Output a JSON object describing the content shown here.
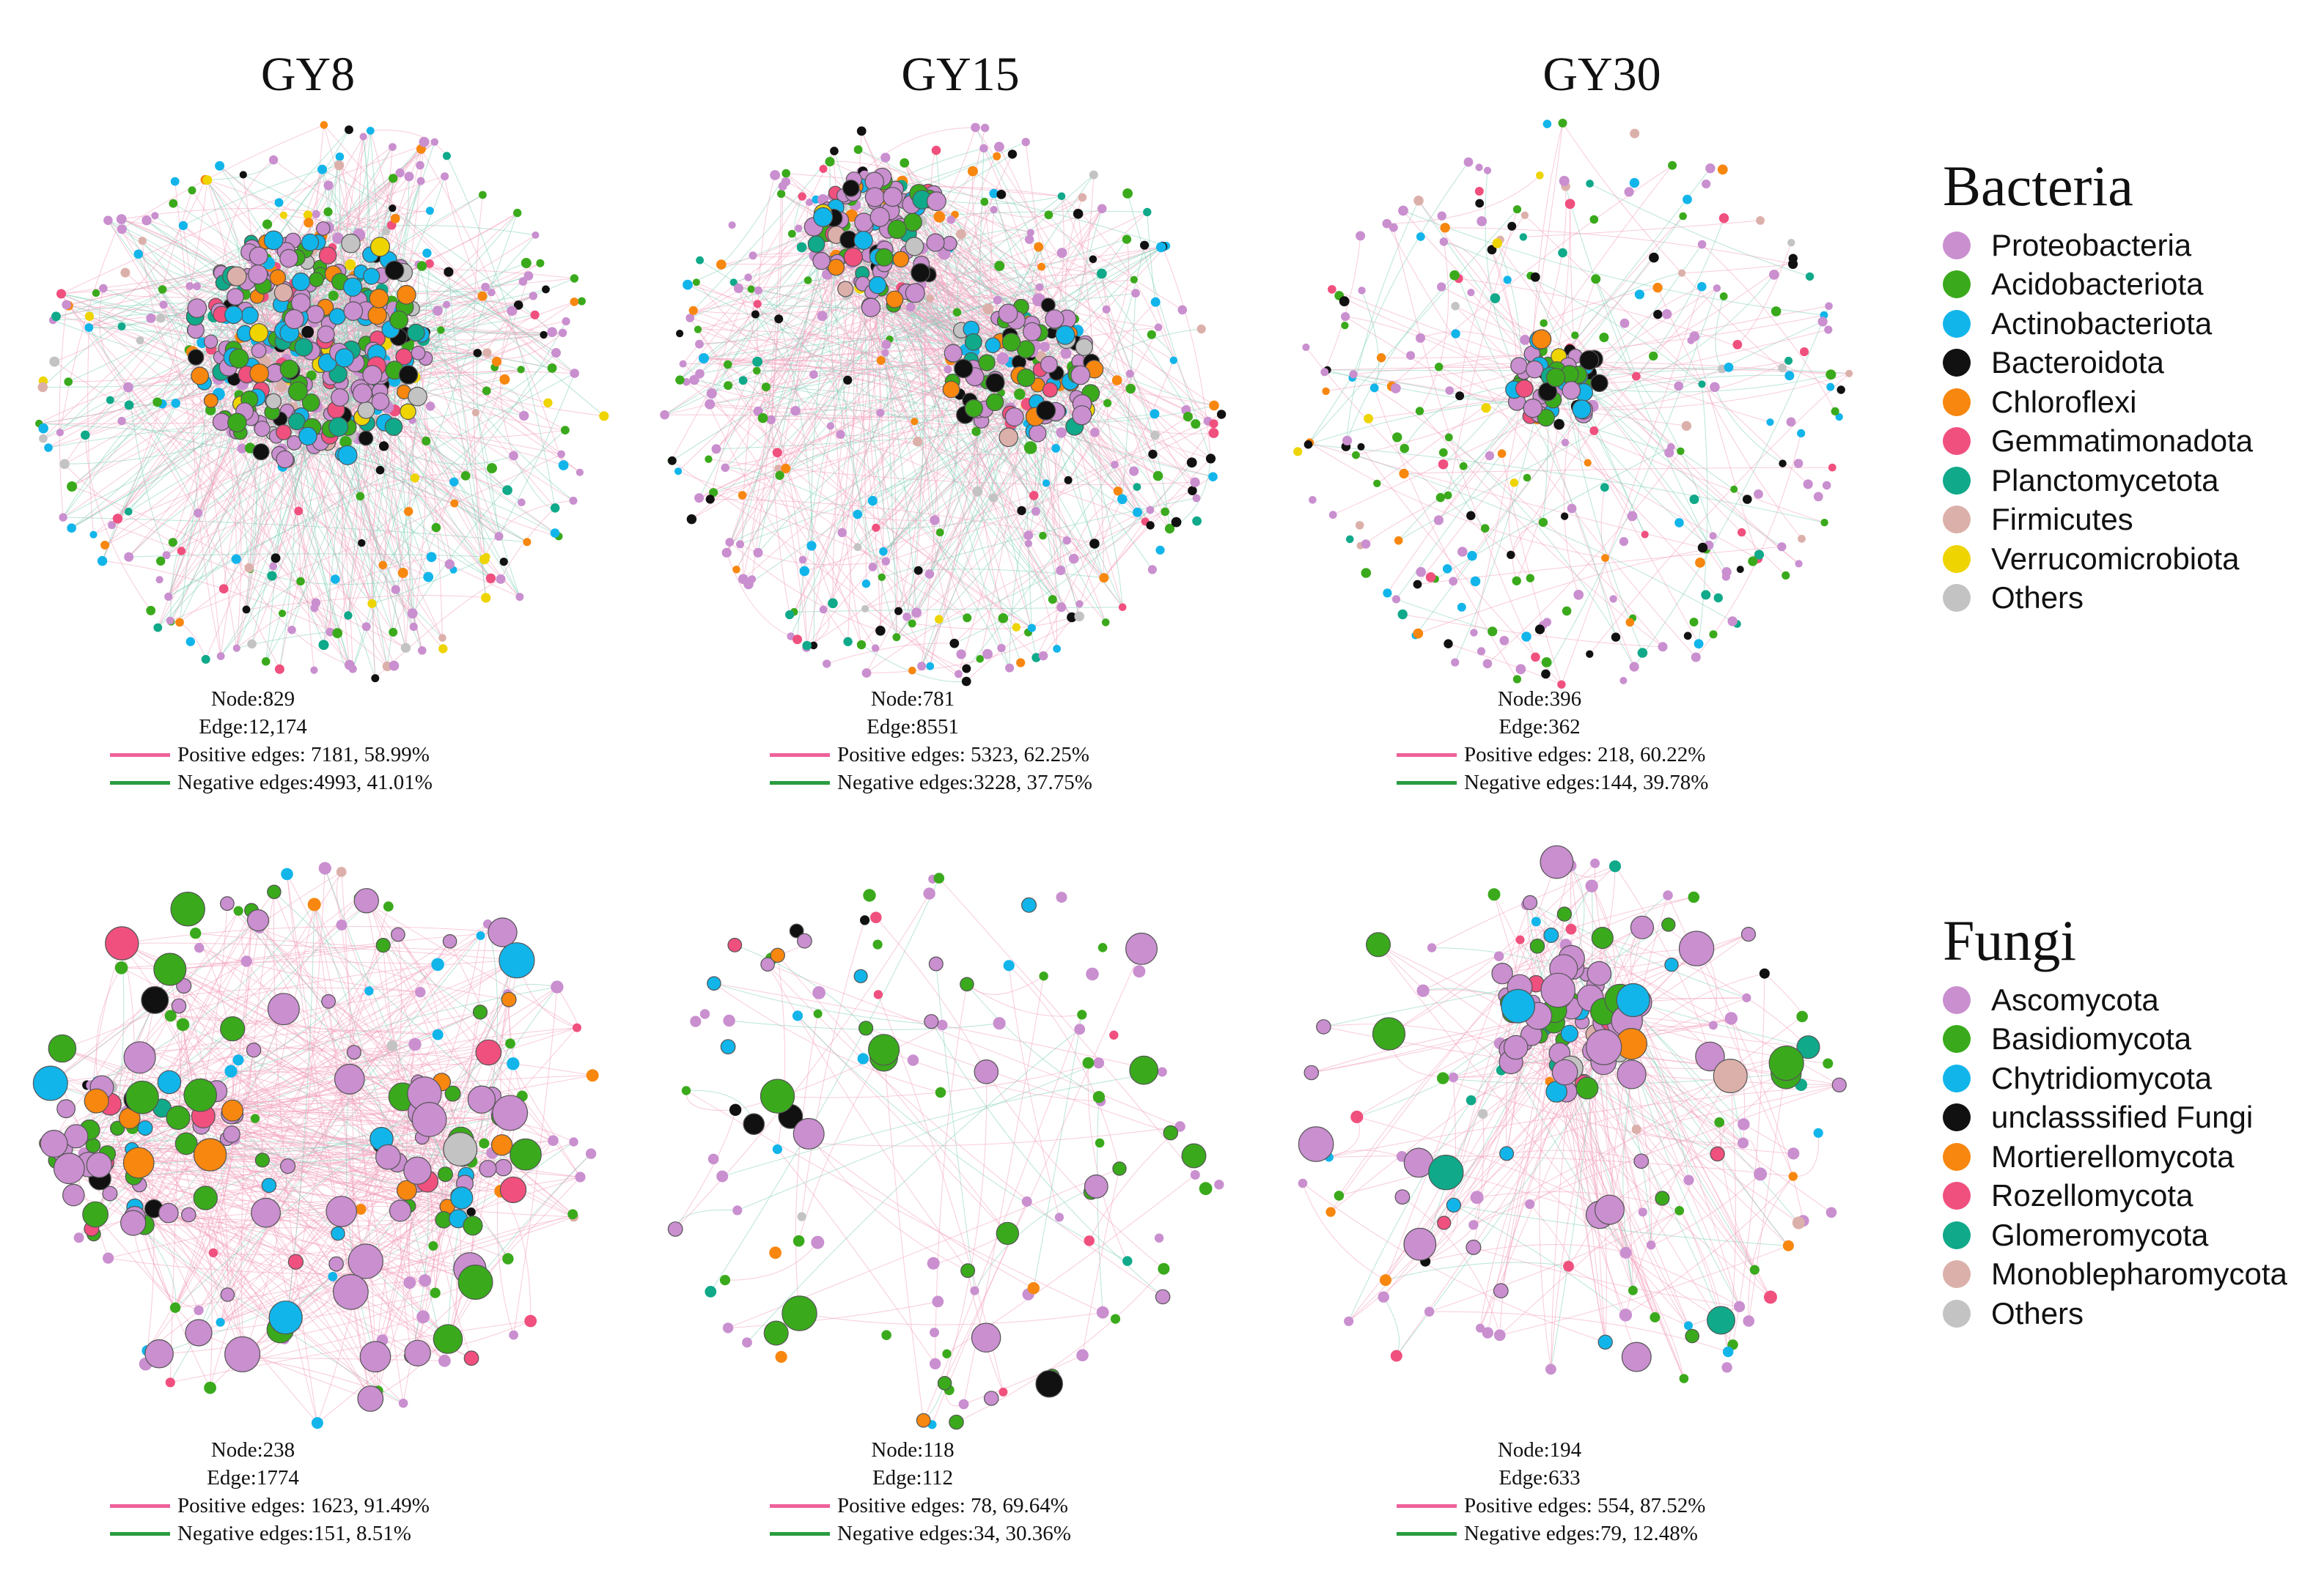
{
  "columns": [
    "GY8",
    "GY15",
    "GY30"
  ],
  "edge_colors": {
    "positive": "#f0609a",
    "negative": "#2a9d3f"
  },
  "bacteria": {
    "title": "Bacteria",
    "legend": [
      {
        "label": "Proteobacteria",
        "color": "#c98fcf"
      },
      {
        "label": "Acidobacteriota",
        "color": "#3aaa1c"
      },
      {
        "label": "Actinobacteriota",
        "color": "#12b5ea"
      },
      {
        "label": "Bacteroidota",
        "color": "#111111"
      },
      {
        "label": "Chloroflexi",
        "color": "#f7870f"
      },
      {
        "label": "Gemmatimonadota",
        "color": "#f0507e"
      },
      {
        "label": "Planctomycetota",
        "color": "#10a98a"
      },
      {
        "label": "Firmicutes",
        "color": "#dcb0aa"
      },
      {
        "label": "Verrucomicrobiota",
        "color": "#eed400"
      },
      {
        "label": "Others",
        "color": "#c3c3c3"
      }
    ],
    "networks": [
      {
        "node": "Node:829",
        "edge": "Edge:12,174",
        "positive": "Positive edges: 7181, 58.99%",
        "negative": "Negative edges:4993, 41.01%"
      },
      {
        "node": "Node:781",
        "edge": "Edge:8551",
        "positive": "Positive edges: 5323, 62.25%",
        "negative": "Negative edges:3228, 37.75%"
      },
      {
        "node": "Node:396",
        "edge": "Edge:362",
        "positive": "Positive edges: 218, 60.22%",
        "negative": "Negative edges:144, 39.78%"
      }
    ]
  },
  "fungi": {
    "title": "Fungi",
    "legend": [
      {
        "label": "Ascomycota",
        "color": "#c98fcf"
      },
      {
        "label": "Basidiomycota",
        "color": "#3aaa1c"
      },
      {
        "label": "Chytridiomycota",
        "color": "#12b5ea"
      },
      {
        "label": "unclasssified Fungi",
        "color": "#111111"
      },
      {
        "label": "Mortierellomycota",
        "color": "#f7870f"
      },
      {
        "label": "Rozellomycota",
        "color": "#f0507e"
      },
      {
        "label": "Glomeromycota",
        "color": "#10a98a"
      },
      {
        "label": "Monoblepharomycota",
        "color": "#dcb0aa"
      },
      {
        "label": "Others",
        "color": "#c3c3c3"
      }
    ],
    "networks": [
      {
        "node": "Node:238",
        "edge": "Edge:1774",
        "positive": "Positive edges: 1623, 91.49%",
        "negative": "Negative edges:151, 8.51%"
      },
      {
        "node": "Node:118",
        "edge": "Edge:112",
        "positive": "Positive edges: 78, 69.64%",
        "negative": "Negative edges:34, 30.36%"
      },
      {
        "node": "Node:194",
        "edge": "Edge:633",
        "positive": "Positive edges: 554, 87.52%",
        "negative": "Negative edges:79, 12.48%"
      }
    ]
  }
}
